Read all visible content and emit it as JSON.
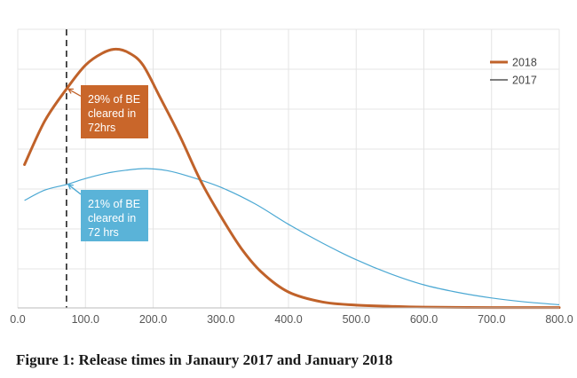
{
  "caption": "Figure 1: Release times in Janaury 2017 and January 2018",
  "colors": {
    "series_2018": "#c0622a",
    "series_2017": "#4ba8d3",
    "annotation_2018_bg": "#c9662a",
    "annotation_2017_bg": "#5ab3d8",
    "grid": "#e4e4e4",
    "marker_line": "#222222"
  },
  "chart_data": {
    "type": "line",
    "title": "",
    "xlabel": "",
    "ylabel": "",
    "xlim": [
      0,
      800
    ],
    "x_ticks": [
      "0.0",
      "100.0",
      "200.0",
      "300.0",
      "400.0",
      "500.0",
      "600.0",
      "700.0",
      "800.0"
    ],
    "grid": "vertical and horizontal",
    "y_axis_labels_shown": false,
    "legend_position": "top-right",
    "legend": [
      "2018",
      "2017"
    ],
    "vertical_marker": {
      "x": 72,
      "style": "dashed"
    },
    "series": [
      {
        "name": "2018",
        "x": [
          10,
          40,
          72,
          100,
          125,
          145,
          165,
          185,
          210,
          240,
          270,
          300,
          330,
          360,
          400,
          450,
          500,
          550,
          600,
          700,
          800
        ],
        "values": [
          3.6,
          4.7,
          5.5,
          6.1,
          6.4,
          6.5,
          6.4,
          6.1,
          5.3,
          4.3,
          3.2,
          2.3,
          1.5,
          0.9,
          0.4,
          0.15,
          0.07,
          0.04,
          0.02,
          0.01,
          0.01
        ]
      },
      {
        "name": "2017",
        "x": [
          10,
          40,
          72,
          100,
          130,
          160,
          190,
          220,
          250,
          300,
          350,
          400,
          450,
          500,
          550,
          600,
          650,
          700,
          750,
          800
        ],
        "values": [
          2.7,
          2.96,
          3.1,
          3.25,
          3.38,
          3.46,
          3.5,
          3.45,
          3.32,
          3.03,
          2.62,
          2.1,
          1.63,
          1.21,
          0.86,
          0.58,
          0.39,
          0.25,
          0.15,
          0.08
        ]
      }
    ],
    "annotations": [
      {
        "series": "2018",
        "x": 72,
        "lines": [
          "29% of BE",
          "cleared in",
          "72hrs"
        ]
      },
      {
        "series": "2017",
        "x": 72,
        "lines": [
          "21% of BE",
          "cleared in",
          "72 hrs"
        ]
      }
    ]
  }
}
